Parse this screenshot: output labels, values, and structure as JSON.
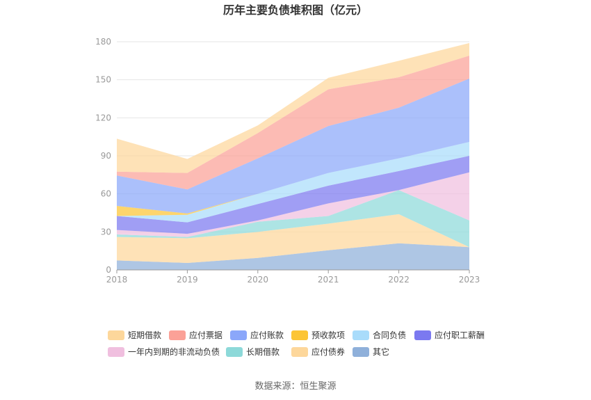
{
  "chart_data": {
    "type": "area",
    "stacked": true,
    "title": "历年主要负债堆积图（亿元）",
    "xlabel": "",
    "ylabel": "",
    "x": [
      "2018",
      "2019",
      "2020",
      "2021",
      "2022",
      "2023"
    ],
    "ylim": [
      0,
      180
    ],
    "yticks": [
      "0",
      "30",
      "60",
      "90",
      "120",
      "150",
      "180"
    ],
    "grid": true,
    "legend_position": "bottom",
    "series": [
      {
        "name": "其它",
        "color": "#8fb0da",
        "values": [
          7.5,
          5.5,
          9.5,
          15.5,
          21,
          18
        ]
      },
      {
        "name": "应付债券",
        "color": "#fdd79b",
        "values": [
          18.5,
          19.5,
          20.5,
          21,
          23,
          0
        ]
      },
      {
        "name": "长期借款",
        "color": "#8dd9d9",
        "values": [
          2,
          1,
          8,
          6,
          19,
          21
        ]
      },
      {
        "name": "一年内到期的非流动负债",
        "color": "#f0bfdf",
        "values": [
          3.5,
          2.5,
          1,
          10,
          0,
          38
        ]
      },
      {
        "name": "应付职工薪酬",
        "color": "#7b79f0",
        "values": [
          11,
          9,
          13,
          14,
          15,
          13
        ]
      },
      {
        "name": "合同负债",
        "color": "#a9dcfb",
        "values": [
          0,
          6,
          8,
          10,
          10,
          11
        ]
      },
      {
        "name": "预收款项",
        "color": "#fcc535",
        "values": [
          8,
          1,
          0,
          0,
          0,
          0
        ]
      },
      {
        "name": "应付账款",
        "color": "#8ba7fa",
        "values": [
          24,
          19,
          28,
          37,
          40,
          50
        ]
      },
      {
        "name": "应付票据",
        "color": "#fba197",
        "values": [
          3,
          13,
          20,
          29,
          24,
          18
        ]
      },
      {
        "name": "短期借款",
        "color": "#fdd79b",
        "values": [
          26,
          11,
          6,
          9,
          13,
          10
        ]
      }
    ],
    "legend_order": [
      "短期借款",
      "应付票据",
      "应付账款",
      "预收款项",
      "合同负债",
      "应付职工薪酬",
      "一年内到期的非流动负债",
      "长期借款",
      "应付债券",
      "其它"
    ]
  },
  "source": "数据来源：恒生聚源"
}
